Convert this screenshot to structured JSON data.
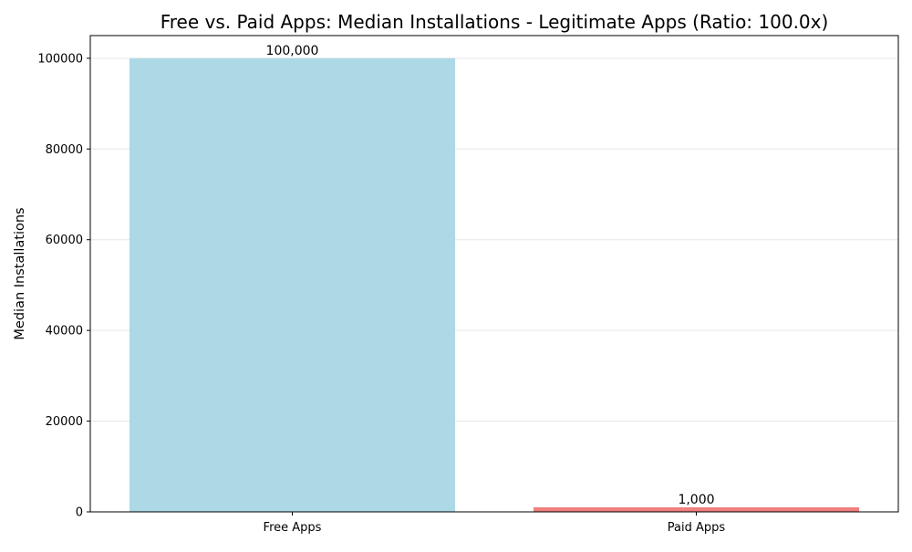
{
  "chart_data": {
    "type": "bar",
    "title": "Free vs. Paid Apps: Median Installations - Legitimate Apps (Ratio: 100.0x)",
    "xlabel": "",
    "ylabel": "Median Installations",
    "categories": [
      "Free Apps",
      "Paid Apps"
    ],
    "values": [
      100000,
      1000
    ],
    "value_labels": [
      "100,000",
      "1,000"
    ],
    "colors": [
      "#add8e6",
      "#f08080"
    ],
    "ylim": [
      0,
      105000
    ],
    "yticks": [
      0,
      20000,
      40000,
      60000,
      80000,
      100000
    ],
    "ytick_labels": [
      "0",
      "20000",
      "40000",
      "60000",
      "80000",
      "100000"
    ],
    "grid": "y-axis dashed light",
    "legend": "none"
  }
}
